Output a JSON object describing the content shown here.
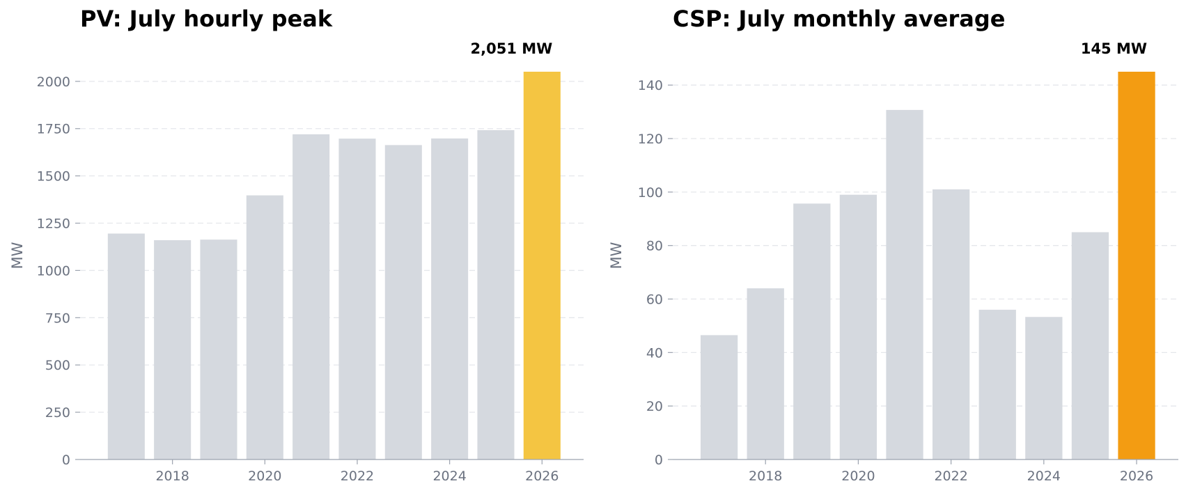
{
  "colors": {
    "bar_default": "#d5d9df",
    "pv_highlight": "#f4c542",
    "csp_highlight": "#f39c12",
    "grid": "#e5e7eb",
    "tick_text": "#6b7280"
  },
  "chart_data": [
    {
      "type": "bar",
      "title": "PV: July hourly peak",
      "xlabel": "",
      "ylabel": "MW",
      "x": [
        2017,
        2018,
        2019,
        2020,
        2021,
        2022,
        2023,
        2024,
        2025,
        2026
      ],
      "values": [
        1195,
        1160,
        1163,
        1397,
        1720,
        1697,
        1663,
        1698,
        1742,
        2051
      ],
      "highlight_index": 9,
      "highlight_label": "2,051 MW",
      "xticks": [
        2018,
        2020,
        2022,
        2024,
        2026
      ],
      "yticks": [
        0,
        250,
        500,
        750,
        1000,
        1250,
        1500,
        1750,
        2000
      ],
      "xlim": [
        2016.0,
        2026.9
      ],
      "ylim": [
        0,
        2051
      ],
      "grid": true,
      "legend": "none"
    },
    {
      "type": "bar",
      "title": "CSP: July monthly average",
      "xlabel": "",
      "ylabel": "MW",
      "x": [
        2017,
        2018,
        2019,
        2020,
        2021,
        2022,
        2023,
        2024,
        2025,
        2026
      ],
      "values": [
        46.5,
        64,
        95.7,
        99,
        130.7,
        101,
        56,
        53.3,
        85,
        145
      ],
      "highlight_index": 9,
      "highlight_label": "145 MW",
      "xticks": [
        2018,
        2020,
        2022,
        2024,
        2026
      ],
      "yticks": [
        0,
        20,
        40,
        60,
        80,
        100,
        120,
        140
      ],
      "xlim": [
        2016.0,
        2026.9
      ],
      "ylim": [
        0,
        145
      ],
      "grid": true,
      "legend": "none"
    }
  ]
}
